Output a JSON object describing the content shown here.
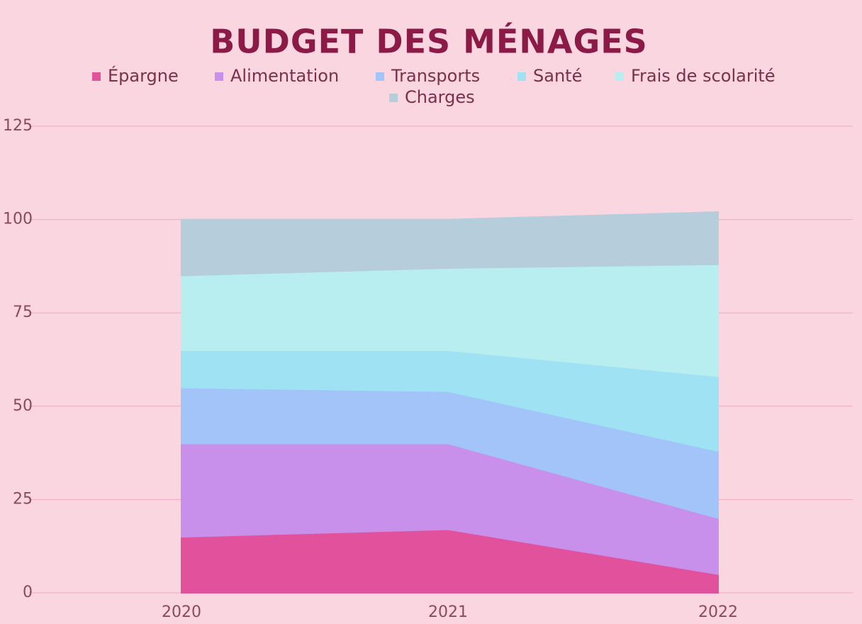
{
  "chart_data": {
    "type": "stacked-area",
    "title": "BUDGET DES MÉNAGES",
    "categories": [
      "2020",
      "2021",
      "2022"
    ],
    "series": [
      {
        "name": "Épargne",
        "color": "#e2519c",
        "values": [
          15,
          17,
          5
        ]
      },
      {
        "name": "Alimentation",
        "color": "#c890ea",
        "values": [
          25,
          23,
          15
        ]
      },
      {
        "name": "Transports",
        "color": "#a2c4f8",
        "values": [
          15,
          14,
          18
        ]
      },
      {
        "name": "Santé",
        "color": "#9fe2f4",
        "values": [
          10,
          11,
          20
        ]
      },
      {
        "name": "Frais de scolarité",
        "color": "#b8eeef",
        "values": [
          20,
          22,
          30
        ]
      },
      {
        "name": "Charges",
        "color": "#b6cedc",
        "values": [
          15,
          13,
          14
        ]
      }
    ],
    "ylim": [
      0,
      125
    ],
    "yticks": [
      0,
      25,
      50,
      75,
      100,
      125
    ],
    "grid": true
  }
}
